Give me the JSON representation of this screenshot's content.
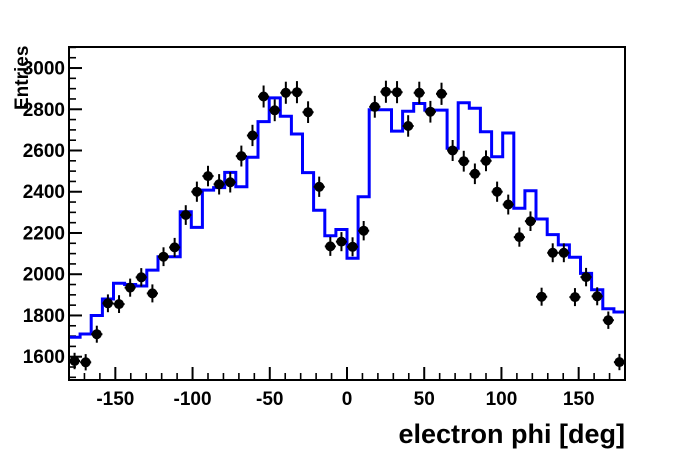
{
  "chart_data": {
    "type": "bar",
    "subtype": "root-histogram-with-data-points",
    "title": "",
    "xlabel": "electron phi [deg]",
    "ylabel": "Entries",
    "xlim": [
      -180,
      180
    ],
    "ylim": [
      1487,
      3102
    ],
    "grid": false,
    "legend": "none",
    "x_major_ticks": [
      -150,
      -100,
      -50,
      0,
      50,
      100,
      150
    ],
    "x_tick_labels": [
      "-150",
      "-100",
      "-50",
      "0",
      "50",
      "100",
      "150"
    ],
    "x_minor_tick_step": 10,
    "y_major_ticks": [
      1600,
      1800,
      2000,
      2200,
      2400,
      2600,
      2800,
      3000
    ],
    "y_tick_labels": [
      "1600",
      "1800",
      "2000",
      "2200",
      "2400",
      "2600",
      "2800",
      "3000"
    ],
    "y_minor_tick_step": 50,
    "n_bins": 50,
    "bin_width_deg": 7.2,
    "bin_centers": [
      -176.4,
      -169.2,
      -162,
      -154.8,
      -147.6,
      -140.4,
      -133.2,
      -126,
      -118.8,
      -111.6,
      -104.4,
      -97.2,
      -90,
      -82.8,
      -75.6,
      -68.4,
      -61.2,
      -54,
      -46.8,
      -39.6,
      -32.4,
      -25.2,
      -18,
      -10.8,
      -3.6,
      3.6,
      10.8,
      18,
      25.2,
      32.4,
      39.6,
      46.8,
      54,
      61.2,
      68.4,
      75.6,
      82.8,
      90,
      97.2,
      104.4,
      111.6,
      118.8,
      126,
      133.2,
      140.4,
      147.6,
      154.8,
      162,
      169.2,
      176.4
    ],
    "series": [
      {
        "name": "data points",
        "style": "points-with-errors",
        "marker": "filled-circle",
        "color": "#000000",
        "error": "sqrt",
        "values": [
          1579,
          1573,
          1709,
          1859,
          1855,
          1935,
          1985,
          1907,
          2085,
          2130,
          2287,
          2400,
          2476,
          2436,
          2446,
          2573,
          2673,
          2862,
          2795,
          2880,
          2883,
          2786,
          2424,
          2135,
          2158,
          2133,
          2211,
          2812,
          2885,
          2883,
          2719,
          2880,
          2788,
          2875,
          2600,
          2548,
          2487,
          2550,
          2400,
          2338,
          2180,
          2257,
          1891,
          2104,
          2104,
          1889,
          1986,
          1893,
          1777,
          1574
        ]
      },
      {
        "name": "histogram",
        "style": "step-line",
        "color": "#0000ff",
        "line_width": 3,
        "values": [
          1694,
          1710,
          1800,
          1880,
          1956,
          1950,
          1943,
          2020,
          2085,
          2085,
          2303,
          2227,
          2408,
          2420,
          2494,
          2424,
          2567,
          2740,
          2855,
          2766,
          2680,
          2493,
          2310,
          2187,
          2217,
          2077,
          2376,
          2798,
          2798,
          2694,
          2790,
          2828,
          2796,
          2796,
          2611,
          2832,
          2805,
          2691,
          2570,
          2685,
          2320,
          2405,
          2268,
          2192,
          2142,
          2082,
          2004,
          1925,
          1833,
          1817
        ]
      }
    ],
    "colors": {
      "background": "#ffffff",
      "frame": "#000000",
      "histogram_line": "#0000ff",
      "data_points": "#000000",
      "tick_labels": "#000000"
    }
  }
}
